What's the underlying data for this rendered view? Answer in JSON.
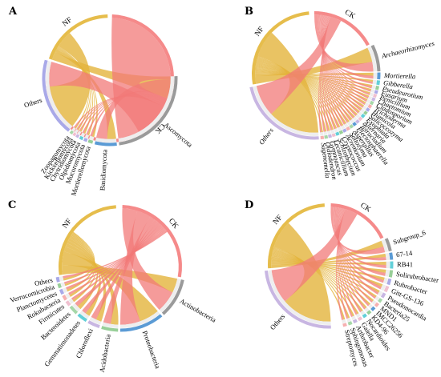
{
  "colors": {
    "NF": "#e6bd4c",
    "CK": "#f58a8a",
    "ribbon_NF": "#e3b43c",
    "ribbon_CK": "#f27a78",
    "tax_palette": [
      "#9a9a9a",
      "#a9a9e8",
      "#98cf98",
      "#5b9bd5",
      "#62cfd8",
      "#f0c0d0",
      "#c8b6e2",
      "#a6d7a8",
      "#f6b0b0"
    ]
  },
  "chart_data": [
    {
      "type": "chord",
      "panel": "A",
      "italic_labels": false,
      "groups": [
        {
          "name": "NF",
          "start": 288,
          "end": 358
        },
        {
          "name": "CK",
          "start": 2,
          "end": 268
        }
      ],
      "taxa": [
        {
          "name": "Ascomycota",
          "start": 88,
          "end": 172,
          "color": "#9a9a9a",
          "link_NF": 0.25
        },
        {
          "name": "Basidiomycota",
          "start": 174,
          "end": 193,
          "color": "#5b9bd5",
          "link_NF": 0.45
        },
        {
          "name": "Mortierellomycota",
          "start": 195,
          "end": 199,
          "color": "#98cf98",
          "link_NF": 0.5
        },
        {
          "name": "Mucoromycota",
          "start": 200,
          "end": 203,
          "color": "#a9a9e8",
          "link_NF": 0.5
        },
        {
          "name": "Olpidiomycota",
          "start": 204,
          "end": 207,
          "color": "#62cfd8",
          "link_NF": 0.5
        },
        {
          "name": "Chytridiomycota",
          "start": 208,
          "end": 210.5,
          "color": "#c8b6e2",
          "link_NF": 0.5
        },
        {
          "name": "Kickxellomycota",
          "start": 211,
          "end": 213.5,
          "color": "#f0c0d0",
          "link_NF": 0.5
        },
        {
          "name": "Zoopagomycota",
          "start": 214,
          "end": 216.5,
          "color": "#a6d7a8",
          "link_NF": 0.5
        },
        {
          "name": "Others",
          "start": 218,
          "end": 286,
          "color": "#a9a9e8",
          "link_NF": 0.65
        }
      ]
    },
    {
      "type": "chord",
      "panel": "B",
      "italic_labels": true,
      "groups": [
        {
          "name": "NF",
          "start": 260,
          "end": 355
        },
        {
          "name": "CK",
          "start": 0,
          "end": 62
        }
      ],
      "taxa": [
        {
          "name": "Archaeorhizomyces",
          "start": 64,
          "end": 88,
          "color": "#9a9a9a",
          "link_NF": 0.6
        },
        {
          "name": "Mortierella",
          "start": 89,
          "end": 95,
          "color": "#5b9bd5",
          "link_NF": 0.5
        },
        {
          "name": "Gibberella",
          "start": 96,
          "end": 100,
          "color": "#62cfd8",
          "link_NF": 0.5
        },
        {
          "name": "Pseudeurotium",
          "start": 101,
          "end": 104.5,
          "color": "#98cf98",
          "link_NF": 0.5
        },
        {
          "name": "Fusarium",
          "start": 105,
          "end": 108,
          "color": "#a9a9e8",
          "link_NF": 0.5
        },
        {
          "name": "Penicillium",
          "start": 108.5,
          "end": 111.5,
          "color": "#f0c0d0",
          "link_NF": 0.5
        },
        {
          "name": "Chaetomium",
          "start": 112,
          "end": 115,
          "color": "#c8b6e2",
          "link_NF": 0.5
        },
        {
          "name": "Cladosporium",
          "start": 115.5,
          "end": 118.5,
          "color": "#a6d7a8",
          "link_NF": 0.5
        },
        {
          "name": "Trichoderma",
          "start": 119,
          "end": 122,
          "color": "#f6b0b0",
          "link_NF": 0.5
        },
        {
          "name": "Humicola",
          "start": 122.5,
          "end": 125.5,
          "color": "#a9a9e8",
          "link_NF": 0.5
        },
        {
          "name": "Solicoccozyma",
          "start": 126,
          "end": 129,
          "color": "#98cf98",
          "link_NF": 0.5
        },
        {
          "name": "Exophiala",
          "start": 129.5,
          "end": 132.5,
          "color": "#62cfd8",
          "link_NF": 0.5
        },
        {
          "name": "Alternaria",
          "start": 133,
          "end": 136,
          "color": "#f0c0d0",
          "link_NF": 0.5
        },
        {
          "name": "Tetracladium",
          "start": 136.5,
          "end": 139.5,
          "color": "#c8b6e2",
          "link_NF": 0.5
        },
        {
          "name": "Plectosphaerella",
          "start": 140,
          "end": 143,
          "color": "#5b9bd5",
          "link_NF": 0.5
        },
        {
          "name": "Aspergillus",
          "start": 143.5,
          "end": 146.5,
          "color": "#a6d7a8",
          "link_NF": 0.5
        },
        {
          "name": "Saitozyma",
          "start": 147,
          "end": 150,
          "color": "#f6b0b0",
          "link_NF": 0.5
        },
        {
          "name": "Acremonium",
          "start": 150.5,
          "end": 153.5,
          "color": "#a9a9e8",
          "link_NF": 0.5
        },
        {
          "name": "Cryptococcus",
          "start": 154,
          "end": 157,
          "color": "#98cf98",
          "link_NF": 0.5
        },
        {
          "name": "Schizothecium",
          "start": 157.5,
          "end": 160.5,
          "color": "#62cfd8",
          "link_NF": 0.5
        },
        {
          "name": "Lecanicillium",
          "start": 161,
          "end": 164,
          "color": "#f0c0d0",
          "link_NF": 0.5
        },
        {
          "name": "Gymnoascus",
          "start": 164.5,
          "end": 167.5,
          "color": "#c8b6e2",
          "link_NF": 0.5
        },
        {
          "name": "Oidiodendron",
          "start": 168,
          "end": 171,
          "color": "#a6d7a8",
          "link_NF": 0.5
        },
        {
          "name": "Sagenomella",
          "start": 171.5,
          "end": 174.5,
          "color": "#f6b0b0",
          "link_NF": 0.5
        },
        {
          "name": "Others",
          "start": 176,
          "end": 258,
          "color": "#c8b6e2",
          "link_NF": 0.62
        }
      ]
    },
    {
      "type": "chord",
      "panel": "C",
      "italic_labels": false,
      "groups": [
        {
          "name": "NF",
          "start": 262,
          "end": 356
        },
        {
          "name": "CK",
          "start": 2,
          "end": 100
        }
      ],
      "taxa": [
        {
          "name": "Actinobacteria",
          "start": 102,
          "end": 138,
          "color": "#9a9a9a",
          "link_NF": 0.4
        },
        {
          "name": "Proteobacteria",
          "start": 140,
          "end": 180,
          "color": "#5b9bd5",
          "link_NF": 0.5
        },
        {
          "name": "Acidobacteria",
          "start": 182,
          "end": 197,
          "color": "#98cf98",
          "link_NF": 0.5
        },
        {
          "name": "Chloroflexi",
          "start": 199,
          "end": 210,
          "color": "#c8b6e2",
          "link_NF": 0.5
        },
        {
          "name": "Gemmatimonadetes",
          "start": 212,
          "end": 221,
          "color": "#62cfd8",
          "link_NF": 0.5
        },
        {
          "name": "Bacteroidetes",
          "start": 223,
          "end": 231,
          "color": "#a6d7a8",
          "link_NF": 0.5
        },
        {
          "name": "Firmicutes",
          "start": 232.5,
          "end": 237,
          "color": "#f0c0d0",
          "link_NF": 0.5
        },
        {
          "name": "Rokubacteria",
          "start": 238.5,
          "end": 243,
          "color": "#f6b0b0",
          "link_NF": 0.5
        },
        {
          "name": "Planctomycetes",
          "start": 244.5,
          "end": 249,
          "color": "#a9a9e8",
          "link_NF": 0.5
        },
        {
          "name": "Verrucomicrobia",
          "start": 250.5,
          "end": 254.5,
          "color": "#98cf98",
          "link_NF": 0.5
        },
        {
          "name": "Others",
          "start": 256,
          "end": 260.5,
          "color": "#a9a9e8",
          "link_NF": 0.5
        }
      ]
    },
    {
      "type": "chord",
      "panel": "D",
      "italic_labels": false,
      "groups": [
        {
          "name": "NF",
          "start": 266,
          "end": 356
        },
        {
          "name": "CK",
          "start": 2,
          "end": 64
        }
      ],
      "taxa": [
        {
          "name": "Subgroup_6",
          "start": 66,
          "end": 78,
          "color": "#9a9a9a",
          "link_NF": 0.5
        },
        {
          "name": "67-14",
          "start": 79.5,
          "end": 86,
          "color": "#5b9bd5",
          "link_NF": 0.5
        },
        {
          "name": "RB41",
          "start": 87.5,
          "end": 94,
          "color": "#62cfd8",
          "link_NF": 0.5
        },
        {
          "name": "Solirubrobacter",
          "start": 95.5,
          "end": 102,
          "color": "#98cf98",
          "link_NF": 0.5
        },
        {
          "name": "Rubrobacter",
          "start": 103.5,
          "end": 109,
          "color": "#a9a9e8",
          "link_NF": 0.5
        },
        {
          "name": "Gitt-GS-136",
          "start": 110.5,
          "end": 116,
          "color": "#f0c0d0",
          "link_NF": 0.5
        },
        {
          "name": "Pseudonocardia",
          "start": 117.5,
          "end": 122,
          "color": "#c8b6e2",
          "link_NF": 0.5
        },
        {
          "name": "Bacteria25",
          "start": 123.5,
          "end": 127,
          "color": "#a6d7a8",
          "link_NF": 0.5
        },
        {
          "name": "MND1",
          "start": 128.5,
          "end": 132,
          "color": "#f6b0b0",
          "link_NF": 0.5
        },
        {
          "name": "IMCC26256",
          "start": 133.5,
          "end": 137,
          "color": "#5b9bd5",
          "link_NF": 0.5
        },
        {
          "name": "KD4-96",
          "start": 138.5,
          "end": 142,
          "color": "#98cf98",
          "link_NF": 0.5
        },
        {
          "name": "Nocardioides",
          "start": 143.5,
          "end": 147,
          "color": "#62cfd8",
          "link_NF": 0.5
        },
        {
          "name": "Gaiella",
          "start": 148.5,
          "end": 152,
          "color": "#f0c0d0",
          "link_NF": 0.5
        },
        {
          "name": "Arthrobacter",
          "start": 153.5,
          "end": 157,
          "color": "#c8b6e2",
          "link_NF": 0.5
        },
        {
          "name": "Sphingomonas",
          "start": 158.5,
          "end": 162,
          "color": "#a6d7a8",
          "link_NF": 0.5
        },
        {
          "name": "Streptomyces",
          "start": 163.5,
          "end": 167,
          "color": "#f6b0b0",
          "link_NF": 0.5
        },
        {
          "name": "Others",
          "start": 178,
          "end": 264,
          "color": "#c8b6e2",
          "link_NF": 0.6
        }
      ]
    }
  ]
}
